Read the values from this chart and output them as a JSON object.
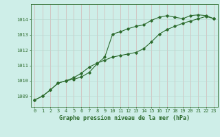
{
  "title": "Graphe pression niveau de la mer (hPa)",
  "background_color": "#ceeee8",
  "line_color": "#2d6b2d",
  "x_labels": [
    "0",
    "1",
    "2",
    "3",
    "4",
    "5",
    "6",
    "7",
    "8",
    "9",
    "10",
    "11",
    "12",
    "13",
    "14",
    "15",
    "16",
    "17",
    "18",
    "19",
    "20",
    "21",
    "22",
    "23"
  ],
  "ylim": [
    1008.3,
    1015.0
  ],
  "yticks": [
    1009,
    1010,
    1011,
    1012,
    1013,
    1014
  ],
  "series1": [
    1008.75,
    1009.0,
    1009.4,
    1009.85,
    1010.0,
    1010.1,
    1010.25,
    1010.55,
    1011.1,
    1011.55,
    1013.05,
    1013.2,
    1013.4,
    1013.55,
    1013.65,
    1013.95,
    1014.15,
    1014.25,
    1014.15,
    1014.05,
    1014.25,
    1014.3,
    1014.25,
    1014.05
  ],
  "series2": [
    1008.75,
    1009.0,
    1009.4,
    1009.85,
    1010.0,
    1010.2,
    1010.5,
    1010.9,
    1011.15,
    1011.35,
    1011.55,
    1011.65,
    1011.75,
    1011.85,
    1012.1,
    1012.55,
    1013.05,
    1013.35,
    1013.55,
    1013.75,
    1013.9,
    1014.05,
    1014.2,
    1014.05
  ],
  "xlabel_fontsize": 5.0,
  "ylabel_fontsize": 5.0,
  "title_fontsize": 6.0
}
